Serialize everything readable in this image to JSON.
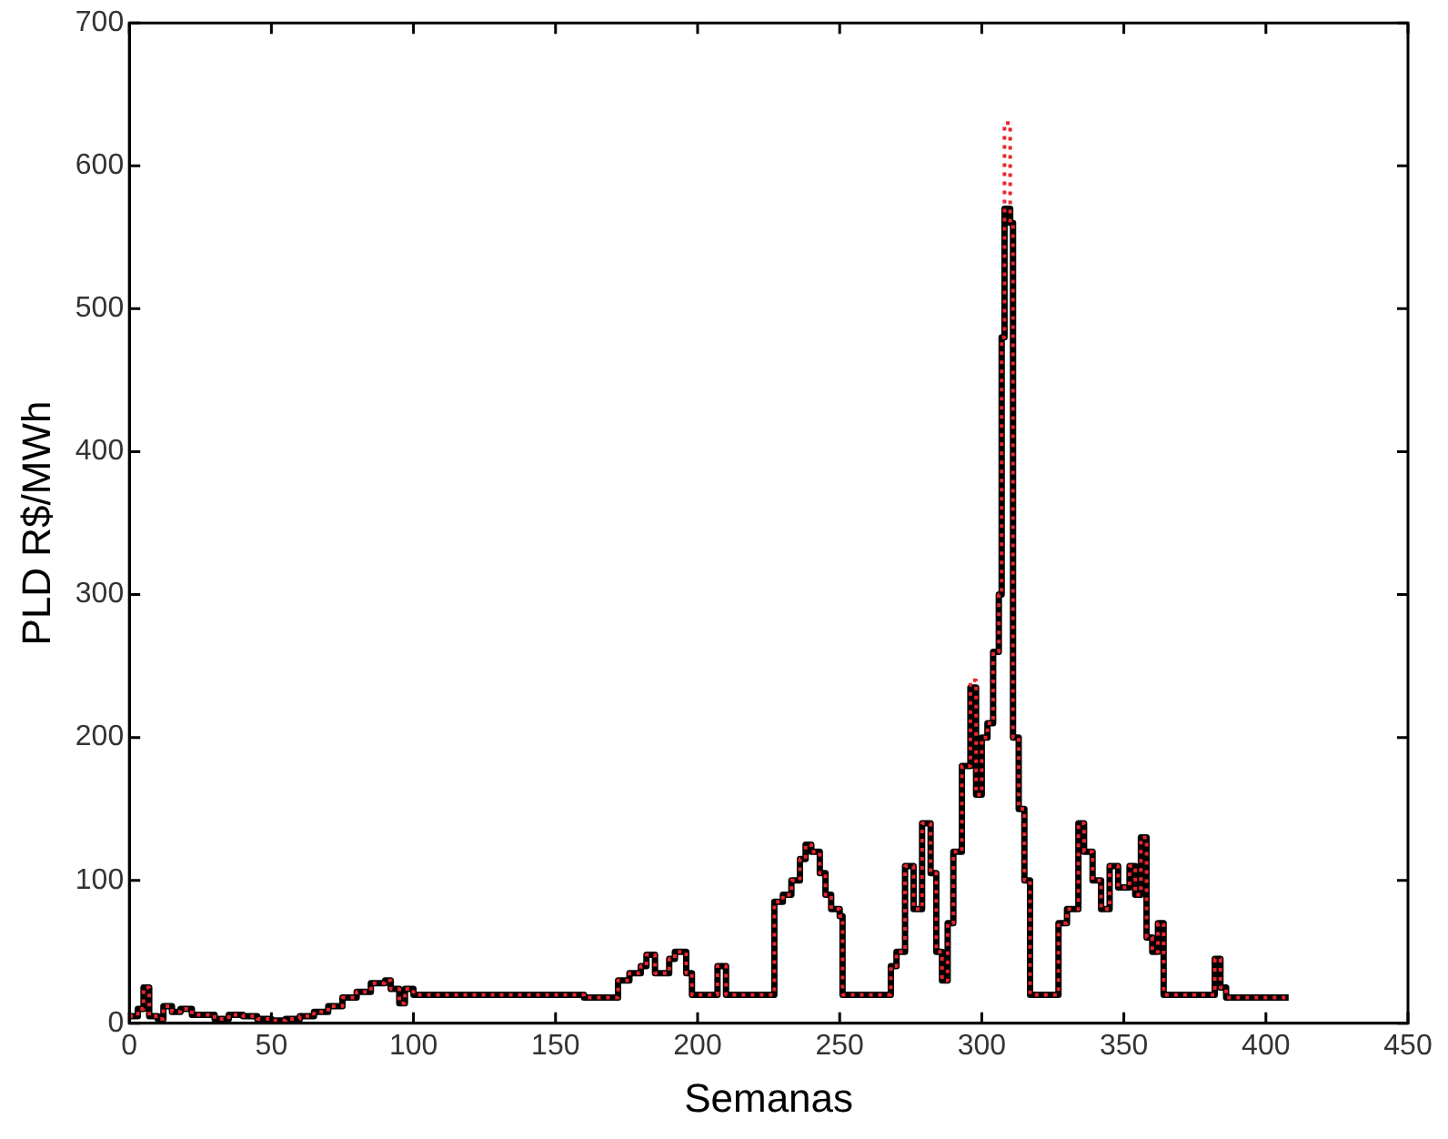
{
  "chart_data": {
    "type": "step",
    "xlabel": "Semanas",
    "ylabel": "PLD R$/MWh",
    "xlim": [
      0,
      450
    ],
    "xticks": [
      0,
      50,
      100,
      150,
      200,
      250,
      300,
      350,
      400,
      450
    ],
    "ylim": [
      0,
      700
    ],
    "yticks": [
      0,
      100,
      200,
      300,
      400,
      500,
      600,
      700
    ],
    "grid": false,
    "legend": false,
    "marker": "none",
    "x": [
      0,
      3,
      5,
      7,
      10,
      12,
      15,
      18,
      22,
      25,
      30,
      35,
      40,
      45,
      50,
      55,
      60,
      65,
      70,
      75,
      80,
      85,
      90,
      92,
      95,
      97,
      100,
      150,
      160,
      170,
      172,
      176,
      180,
      182,
      185,
      190,
      192,
      196,
      198,
      205,
      207,
      210,
      225,
      227,
      230,
      233,
      236,
      238,
      240,
      243,
      245,
      247,
      250,
      251,
      265,
      268,
      270,
      273,
      276,
      279,
      282,
      284,
      286,
      288,
      290,
      293,
      296,
      298,
      300,
      302,
      304,
      306,
      307,
      308,
      310,
      311,
      313,
      315,
      317,
      325,
      327,
      330,
      334,
      336,
      339,
      342,
      345,
      348,
      352,
      354,
      356,
      358,
      360,
      362,
      364,
      380,
      382,
      384,
      386,
      408
    ],
    "series": [
      {
        "color": "#000000",
        "line_style": "solid",
        "values": [
          5,
          10,
          25,
          5,
          3,
          12,
          8,
          10,
          6,
          6,
          3,
          6,
          5,
          3,
          2,
          3,
          5,
          8,
          12,
          18,
          22,
          28,
          30,
          24,
          14,
          24,
          20,
          20,
          18,
          18,
          30,
          35,
          40,
          48,
          35,
          45,
          50,
          35,
          20,
          20,
          40,
          20,
          20,
          85,
          90,
          100,
          115,
          125,
          120,
          105,
          90,
          80,
          75,
          20,
          20,
          40,
          50,
          110,
          80,
          140,
          105,
          50,
          30,
          70,
          120,
          180,
          235,
          160,
          200,
          210,
          260,
          300,
          480,
          570,
          560,
          200,
          150,
          100,
          20,
          20,
          70,
          80,
          140,
          120,
          100,
          80,
          110,
          95,
          110,
          90,
          130,
          60,
          50,
          70,
          20,
          20,
          45,
          25,
          18,
          18
        ]
      },
      {
        "color": "#e8272e",
        "line_style": "dotted",
        "values": [
          5,
          10,
          25,
          5,
          3,
          12,
          8,
          10,
          6,
          6,
          3,
          6,
          5,
          3,
          2,
          3,
          5,
          8,
          12,
          18,
          22,
          28,
          30,
          24,
          14,
          24,
          20,
          20,
          18,
          18,
          30,
          35,
          40,
          48,
          35,
          45,
          50,
          35,
          20,
          20,
          40,
          20,
          20,
          85,
          90,
          100,
          115,
          125,
          120,
          105,
          90,
          80,
          75,
          20,
          20,
          40,
          50,
          110,
          80,
          140,
          105,
          50,
          30,
          70,
          120,
          180,
          240,
          160,
          200,
          210,
          260,
          300,
          480,
          630,
          560,
          200,
          150,
          100,
          20,
          20,
          70,
          80,
          140,
          120,
          100,
          80,
          110,
          95,
          110,
          90,
          130,
          60,
          50,
          70,
          20,
          20,
          45,
          25,
          18,
          18
        ]
      }
    ]
  }
}
